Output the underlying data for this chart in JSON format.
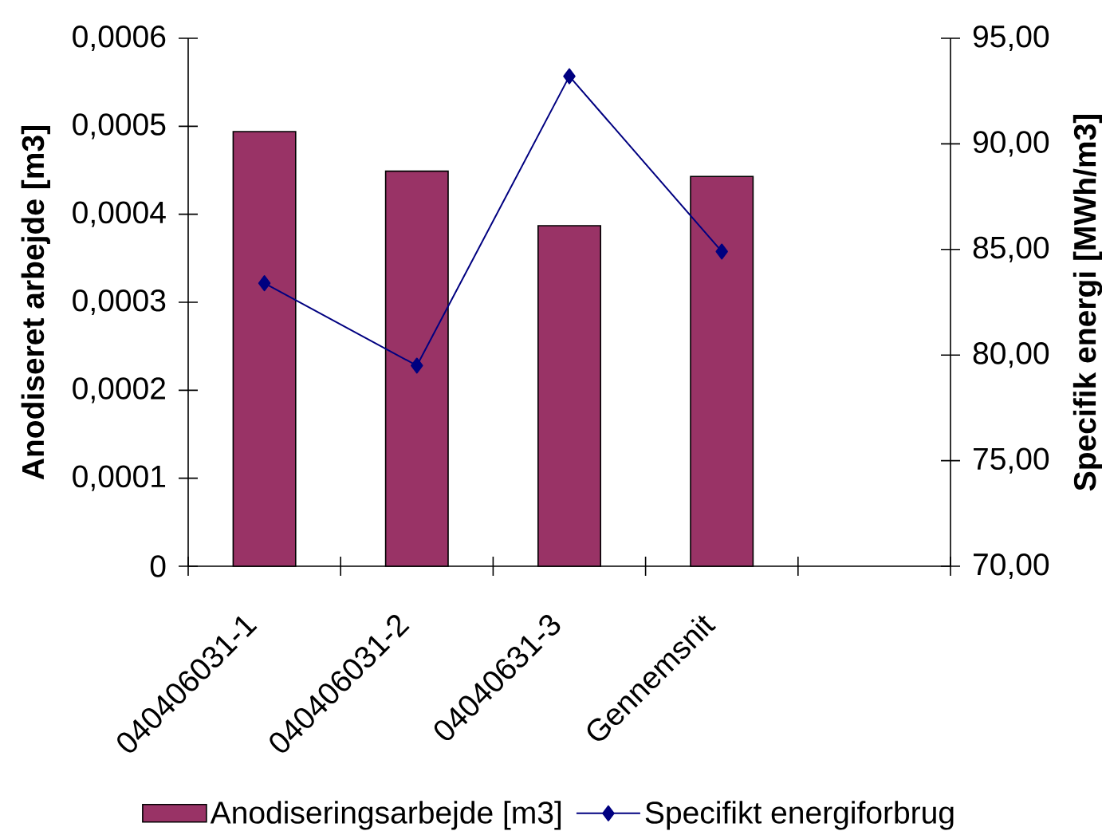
{
  "chart_data": {
    "type": "bar",
    "ylabel": "Anodiseret arbejde [m3]",
    "y2label": "Specifik energi [MWh/m3]",
    "categories": [
      "040406031-1",
      "040406031-2",
      "04040631-3",
      "Gennemsnit",
      null
    ],
    "series": [
      {
        "name": "Anodiseringsarbejde [m3]",
        "color": "#993366",
        "values": [
          0.000494,
          0.000449,
          0.000387,
          0.000443,
          null
        ]
      },
      {
        "name": "Specifikt energiforbrug",
        "type": "line",
        "axis": "y2",
        "color": "#000080",
        "marker": "diamond",
        "values": [
          83.4,
          79.5,
          93.2,
          84.9,
          null
        ]
      }
    ],
    "ylim": [
      0,
      0.0006
    ],
    "yticks": [
      0,
      {
        "value": 0.0001,
        "label": "0,0001"
      },
      {
        "value": 0.0002,
        "label": "0,0002"
      },
      {
        "value": 0.0003,
        "label": "0,0003"
      },
      {
        "value": 0.0004,
        "label": "0,0004"
      },
      {
        "value": 0.0005,
        "label": "0,0005"
      },
      {
        "value": 0.0006,
        "label": "0,0006"
      }
    ],
    "y2lim": [
      70,
      95
    ],
    "y2ticks": [
      {
        "value": 70,
        "label": "70,00"
      },
      {
        "value": 75,
        "label": "75,00"
      },
      {
        "value": 80,
        "label": "80,00"
      },
      {
        "value": 85,
        "label": "85,00"
      },
      {
        "value": 90,
        "label": "90,00"
      },
      {
        "value": 95,
        "label": "95,00"
      }
    ],
    "legend": "bottom"
  }
}
